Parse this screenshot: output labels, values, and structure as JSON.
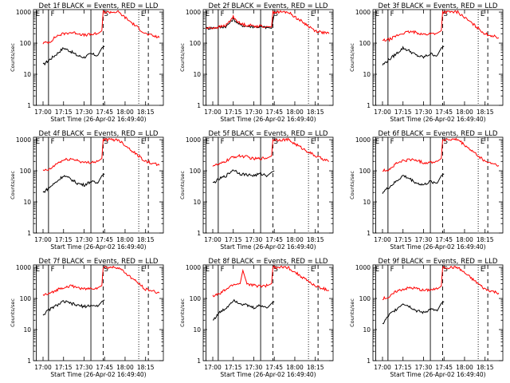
{
  "chart_data": [
    {
      "type": "line",
      "title": "Det 1f BLACK = Events, RED = LLD",
      "xlabel": "Start Time (26-Apr-02 16:49:40)",
      "ylabel": "Counts/sec",
      "xticks": [
        "17:00",
        "17:15",
        "17:30",
        "17:45",
        "18:00",
        "18:15"
      ],
      "yticks": [
        "1",
        "10",
        "100",
        "1000"
      ],
      "ylim": [
        1,
        1000
      ],
      "yscale": "log",
      "markers": [
        "E",
        "F",
        "S",
        "E"
      ],
      "series": [
        {
          "color": "#000000",
          "x": [
            "17:00",
            "17:05",
            "17:10",
            "17:15",
            "17:20",
            "17:25",
            "17:30",
            "17:35",
            "17:40",
            "17:43",
            "17:45"
          ],
          "values": [
            20,
            30,
            45,
            70,
            55,
            40,
            35,
            45,
            40,
            70,
            80
          ]
        },
        {
          "color": "#ff0000",
          "x": [
            "17:00",
            "17:05",
            "17:10",
            "17:15",
            "17:20",
            "17:25",
            "17:30",
            "17:35",
            "17:40",
            "17:43",
            "17:44",
            "17:55",
            "18:15",
            "18:25"
          ],
          "values": [
            100,
            110,
            170,
            200,
            220,
            210,
            180,
            190,
            200,
            250,
            1000,
            1000,
            200,
            150
          ]
        }
      ]
    },
    {
      "type": "line",
      "title": "Det 2f BLACK = Events, RED = LLD",
      "xlabel": "Start Time (26-Apr-02 16:49:40)",
      "ylabel": "Counts/sec",
      "xticks": [
        "17:00",
        "17:15",
        "17:30",
        "17:45",
        "18:00",
        "18:15"
      ],
      "yticks": [
        "1",
        "10",
        "100",
        "1000"
      ],
      "ylim": [
        1,
        1000
      ],
      "yscale": "log",
      "markers": [
        "E",
        "F",
        "S",
        "E"
      ],
      "series": [
        {
          "color": "#000000",
          "x": [
            "16:55",
            "17:00",
            "17:05",
            "17:10",
            "17:15",
            "17:20",
            "17:25",
            "17:30",
            "17:35",
            "17:40",
            "17:43",
            "17:45"
          ],
          "values": [
            300,
            310,
            320,
            350,
            600,
            380,
            350,
            340,
            330,
            320,
            300,
            900
          ]
        },
        {
          "color": "#ff0000",
          "x": [
            "16:55",
            "17:00",
            "17:05",
            "17:10",
            "17:15",
            "17:20",
            "17:25",
            "17:30",
            "17:35",
            "17:40",
            "17:43",
            "17:44",
            "17:55",
            "18:15",
            "18:25"
          ],
          "values": [
            300,
            310,
            330,
            380,
            700,
            420,
            380,
            360,
            350,
            340,
            330,
            1000,
            1000,
            250,
            200
          ]
        }
      ]
    },
    {
      "type": "line",
      "title": "Det 3f BLACK = Events, RED = LLD",
      "xlabel": "Start Time (26-Apr-02 16:49:40)",
      "ylabel": "Counts/sec",
      "xticks": [
        "17:00",
        "17:15",
        "17:30",
        "17:45",
        "18:00",
        "18:15"
      ],
      "yticks": [
        "1",
        "10",
        "100",
        "1000"
      ],
      "ylim": [
        1,
        1000
      ],
      "yscale": "log",
      "markers": [
        "E",
        "F",
        "S",
        "E"
      ],
      "series": [
        {
          "color": "#000000",
          "x": [
            "17:00",
            "17:05",
            "17:10",
            "17:15",
            "17:20",
            "17:25",
            "17:30",
            "17:35",
            "17:40",
            "17:43",
            "17:45"
          ],
          "values": [
            20,
            30,
            45,
            70,
            55,
            40,
            35,
            45,
            40,
            70,
            80
          ]
        },
        {
          "color": "#ff0000",
          "x": [
            "17:00",
            "17:05",
            "17:10",
            "17:15",
            "17:20",
            "17:25",
            "17:30",
            "17:35",
            "17:40",
            "17:43",
            "17:44",
            "17:55",
            "18:15",
            "18:25"
          ],
          "values": [
            120,
            130,
            170,
            210,
            230,
            220,
            190,
            200,
            210,
            250,
            1000,
            1000,
            200,
            150
          ]
        }
      ]
    },
    {
      "type": "line",
      "title": "Det 4f BLACK = Events, RED = LLD",
      "xlabel": "Start Time (26-Apr-02 16:49:40)",
      "ylabel": "Counts/sec",
      "xticks": [
        "17:00",
        "17:15",
        "17:30",
        "17:45",
        "18:00",
        "18:15"
      ],
      "yticks": [
        "1",
        "10",
        "100",
        "1000"
      ],
      "ylim": [
        1,
        1000
      ],
      "yscale": "log",
      "markers": [
        "E",
        "F",
        "S",
        "E"
      ],
      "series": [
        {
          "color": "#000000",
          "x": [
            "17:00",
            "17:05",
            "17:10",
            "17:15",
            "17:20",
            "17:25",
            "17:30",
            "17:35",
            "17:40",
            "17:43",
            "17:45"
          ],
          "values": [
            20,
            30,
            45,
            70,
            55,
            40,
            35,
            45,
            40,
            70,
            80
          ]
        },
        {
          "color": "#ff0000",
          "x": [
            "17:00",
            "17:05",
            "17:10",
            "17:15",
            "17:20",
            "17:25",
            "17:30",
            "17:35",
            "17:40",
            "17:43",
            "17:44",
            "17:55",
            "18:15",
            "18:25"
          ],
          "values": [
            100,
            110,
            170,
            220,
            240,
            220,
            180,
            190,
            200,
            250,
            1000,
            1000,
            200,
            150
          ]
        }
      ]
    },
    {
      "type": "line",
      "title": "Det 5f BLACK = Events, RED = LLD",
      "xlabel": "Start Time (26-Apr-02 16:49:40)",
      "ylabel": "Counts/sec",
      "xticks": [
        "17:00",
        "17:15",
        "17:30",
        "17:45",
        "18:00",
        "18:15"
      ],
      "yticks": [
        "1",
        "10",
        "100",
        "1000"
      ],
      "ylim": [
        1,
        1000
      ],
      "yscale": "log",
      "markers": [
        "E",
        "F",
        "S",
        "E"
      ],
      "series": [
        {
          "color": "#000000",
          "x": [
            "17:00",
            "17:05",
            "17:10",
            "17:15",
            "17:20",
            "17:25",
            "17:30",
            "17:35",
            "17:40",
            "17:43",
            "17:45"
          ],
          "values": [
            40,
            55,
            70,
            110,
            80,
            75,
            70,
            80,
            70,
            90,
            100
          ]
        },
        {
          "color": "#ff0000",
          "x": [
            "17:00",
            "17:05",
            "17:10",
            "17:15",
            "17:20",
            "17:25",
            "17:30",
            "17:35",
            "17:40",
            "17:43",
            "17:44",
            "17:55",
            "18:15",
            "18:25"
          ],
          "values": [
            150,
            160,
            210,
            280,
            300,
            280,
            240,
            250,
            260,
            300,
            1000,
            1000,
            300,
            200
          ]
        }
      ]
    },
    {
      "type": "line",
      "title": "Det 6f BLACK = Events, RED = LLD",
      "xlabel": "Start Time (26-Apr-02 16:49:40)",
      "ylabel": "Counts/sec",
      "xticks": [
        "17:00",
        "17:15",
        "17:30",
        "17:45",
        "18:00",
        "18:15"
      ],
      "yticks": [
        "1",
        "10",
        "100",
        "1000"
      ],
      "ylim": [
        1,
        1000
      ],
      "yscale": "log",
      "markers": [
        "E",
        "F",
        "S",
        "E"
      ],
      "series": [
        {
          "color": "#000000",
          "x": [
            "17:00",
            "17:05",
            "17:10",
            "17:15",
            "17:20",
            "17:25",
            "17:30",
            "17:35",
            "17:40",
            "17:43",
            "17:45"
          ],
          "values": [
            20,
            30,
            45,
            70,
            55,
            40,
            35,
            45,
            40,
            70,
            80
          ]
        },
        {
          "color": "#ff0000",
          "x": [
            "17:00",
            "17:05",
            "17:10",
            "17:15",
            "17:20",
            "17:25",
            "17:30",
            "17:35",
            "17:40",
            "17:43",
            "17:44",
            "17:55",
            "18:15",
            "18:25"
          ],
          "values": [
            100,
            110,
            170,
            210,
            230,
            220,
            180,
            190,
            200,
            250,
            1000,
            1000,
            200,
            150
          ]
        }
      ]
    },
    {
      "type": "line",
      "title": "Det 7f BLACK = Events, RED = LLD",
      "xlabel": "Start Time (26-Apr-02 16:49:40)",
      "ylabel": "Counts/sec",
      "xticks": [
        "17:00",
        "17:15",
        "17:30",
        "17:45",
        "18:00",
        "18:15"
      ],
      "yticks": [
        "1",
        "10",
        "100",
        "1000"
      ],
      "ylim": [
        1,
        1000
      ],
      "yscale": "log",
      "markers": [
        "E",
        "F",
        "S",
        "E"
      ],
      "series": [
        {
          "color": "#000000",
          "x": [
            "17:00",
            "17:05",
            "17:10",
            "17:15",
            "17:20",
            "17:25",
            "17:30",
            "17:35",
            "17:40",
            "17:43",
            "17:45"
          ],
          "values": [
            30,
            45,
            60,
            80,
            70,
            60,
            55,
            60,
            55,
            80,
            90
          ]
        },
        {
          "color": "#ff0000",
          "x": [
            "17:00",
            "17:05",
            "17:10",
            "17:15",
            "17:20",
            "17:25",
            "17:30",
            "17:35",
            "17:40",
            "17:43",
            "17:44",
            "17:55",
            "18:15",
            "18:25"
          ],
          "values": [
            130,
            140,
            190,
            230,
            250,
            230,
            200,
            210,
            220,
            260,
            1000,
            1000,
            200,
            150
          ]
        }
      ]
    },
    {
      "type": "line",
      "title": "Det 8f BLACK = Events, RED = LLD",
      "xlabel": "Start Time (26-Apr-02 16:49:40)",
      "ylabel": "Counts/sec",
      "xticks": [
        "17:00",
        "17:15",
        "17:30",
        "17:45",
        "18:00",
        "18:15"
      ],
      "yticks": [
        "1",
        "10",
        "100",
        "1000"
      ],
      "ylim": [
        1,
        1000
      ],
      "yscale": "log",
      "markers": [
        "E",
        "F",
        "S",
        "E"
      ],
      "series": [
        {
          "color": "#000000",
          "x": [
            "17:00",
            "17:05",
            "17:10",
            "17:15",
            "17:20",
            "17:25",
            "17:30",
            "17:35",
            "17:40",
            "17:43",
            "17:45"
          ],
          "values": [
            20,
            35,
            50,
            90,
            70,
            60,
            50,
            60,
            50,
            70,
            80
          ]
        },
        {
          "color": "#ff0000",
          "x": [
            "17:00",
            "17:05",
            "17:10",
            "17:15",
            "17:20",
            "17:22",
            "17:25",
            "17:30",
            "17:35",
            "17:40",
            "17:43",
            "17:44",
            "17:55",
            "18:15",
            "18:25"
          ],
          "values": [
            120,
            140,
            200,
            280,
            300,
            800,
            300,
            260,
            250,
            260,
            300,
            1000,
            1000,
            250,
            180
          ]
        }
      ]
    },
    {
      "type": "line",
      "title": "Det 9f BLACK = Events, RED = LLD",
      "xlabel": "Start Time (26-Apr-02 16:49:40)",
      "ylabel": "Counts/sec",
      "xticks": [
        "17:00",
        "17:15",
        "17:30",
        "17:45",
        "18:00",
        "18:15"
      ],
      "yticks": [
        "1",
        "10",
        "100",
        "1000"
      ],
      "ylim": [
        1,
        1000
      ],
      "yscale": "log",
      "markers": [
        "E",
        "F",
        "S",
        "E"
      ],
      "series": [
        {
          "color": "#000000",
          "x": [
            "17:00",
            "17:05",
            "17:10",
            "17:15",
            "17:20",
            "17:25",
            "17:30",
            "17:35",
            "17:40",
            "17:43",
            "17:45"
          ],
          "values": [
            15,
            30,
            45,
            70,
            55,
            40,
            35,
            45,
            40,
            70,
            80
          ]
        },
        {
          "color": "#ff0000",
          "x": [
            "17:00",
            "17:05",
            "17:10",
            "17:15",
            "17:20",
            "17:25",
            "17:30",
            "17:35",
            "17:40",
            "17:43",
            "17:44",
            "17:55",
            "18:15",
            "18:25"
          ],
          "values": [
            100,
            110,
            170,
            200,
            220,
            210,
            180,
            190,
            200,
            250,
            1000,
            1000,
            200,
            150
          ]
        }
      ]
    }
  ],
  "event_lines": [
    {
      "time": "16:55",
      "style": "solid"
    },
    {
      "time": "17:04",
      "style": "solid"
    },
    {
      "time": "17:35",
      "style": "solid"
    },
    {
      "time": "17:44",
      "style": "dash"
    },
    {
      "time": "18:10",
      "style": "dot"
    },
    {
      "time": "18:17",
      "style": "dash"
    }
  ]
}
